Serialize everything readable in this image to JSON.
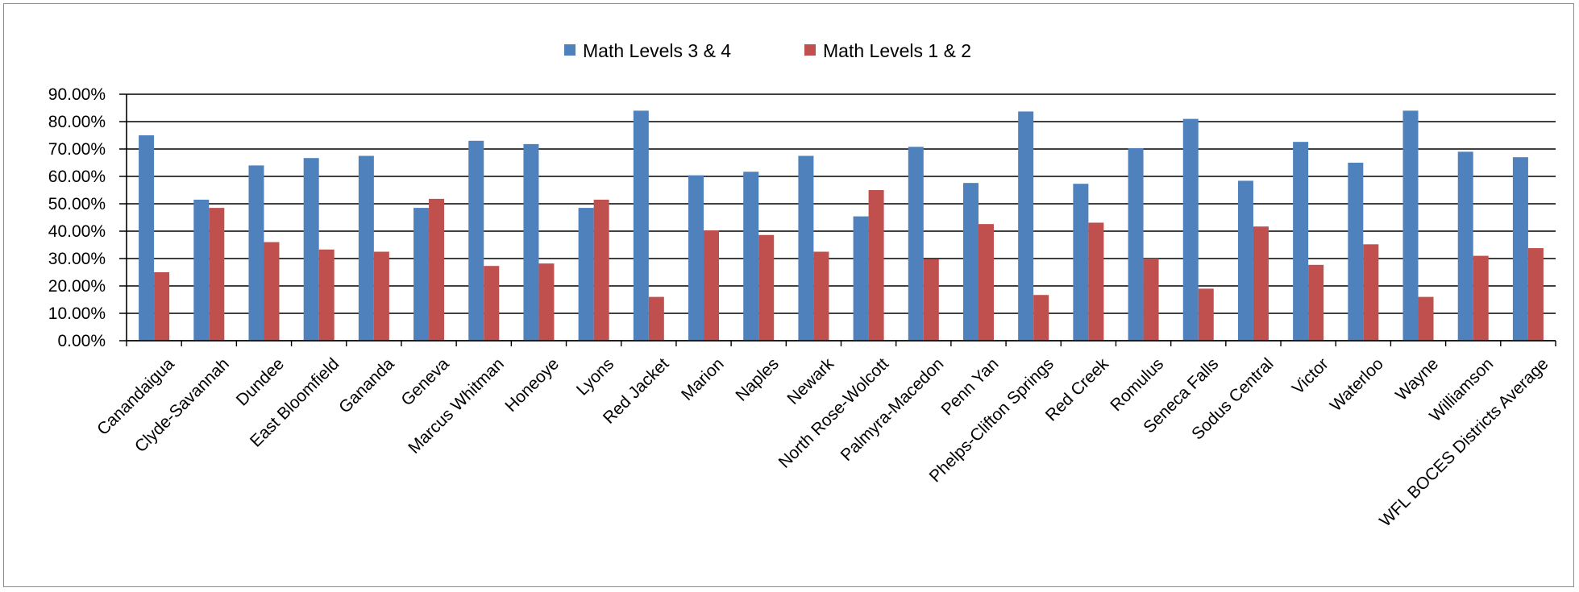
{
  "chart_data": {
    "type": "bar",
    "title": "",
    "xlabel": "",
    "ylabel": "",
    "ylim": [
      0,
      90
    ],
    "yticks": [
      "0.00%",
      "10.00%",
      "20.00%",
      "30.00%",
      "40.00%",
      "50.00%",
      "60.00%",
      "70.00%",
      "80.00%",
      "90.00%"
    ],
    "grid": true,
    "legend_position": "top-center",
    "categories": [
      "Canandaigua",
      "Clyde-Savannah",
      "Dundee",
      "East Bloomfield",
      "Gananda",
      "Geneva",
      "Marcus Whitman",
      "Honeoye",
      "Lyons",
      "Red Jacket",
      "Marion",
      "Naples",
      "Newark",
      "North Rose-Wolcott",
      "Palmyra-Macedon",
      "Penn Yan",
      "Phelps-Clifton Springs",
      "Red Creek",
      "Romulus",
      "Seneca Falls",
      "Sodus Central",
      "Victor",
      "Waterloo",
      "Wayne",
      "Williamson",
      "WFL BOCES Districts Average"
    ],
    "series": [
      {
        "name": "Math Levels 3 & 4",
        "color": "#4F81BD",
        "values": [
          75.0,
          51.5,
          64.0,
          66.7,
          67.5,
          48.5,
          73.0,
          71.8,
          48.5,
          84.0,
          60.4,
          61.7,
          67.5,
          45.4,
          70.8,
          57.6,
          83.7,
          57.3,
          70.3,
          81.0,
          58.4,
          72.6,
          65.0,
          84.0,
          69.0,
          67.0
        ]
      },
      {
        "name": "Math Levels 1 & 2",
        "color": "#C0504D",
        "values": [
          25.0,
          48.5,
          36.0,
          33.3,
          32.5,
          51.8,
          27.3,
          28.2,
          51.5,
          16.0,
          40.3,
          38.6,
          32.5,
          55.0,
          29.7,
          42.6,
          16.7,
          43.1,
          30.0,
          19.0,
          41.7,
          27.7,
          35.2,
          16.0,
          31.0,
          33.8
        ]
      }
    ]
  }
}
